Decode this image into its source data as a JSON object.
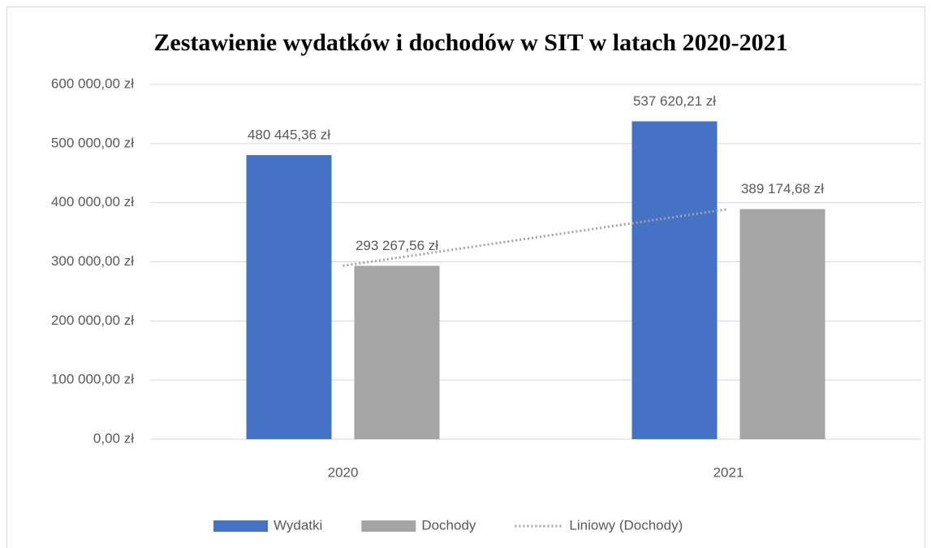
{
  "chart_data": {
    "type": "bar",
    "title": "Zestawienie wydatków i dochodów w SIT w latach 2020-2021",
    "categories": [
      "2020",
      "2021"
    ],
    "series": [
      {
        "name": "Wydatki",
        "color": "#4472c4",
        "values": [
          480445.36,
          537620.21
        ],
        "value_labels": [
          "480 445,36 zł",
          "537 620,21 zł"
        ]
      },
      {
        "name": "Dochody",
        "color": "#a5a5a5",
        "values": [
          293267.56,
          389174.68
        ],
        "value_labels": [
          "293 267,56 zł",
          "389 174,68 zł"
        ]
      }
    ],
    "trendline": {
      "name": "Liniowy (Dochody)",
      "series": 1,
      "color": "#a5a5a5"
    },
    "ylim": [
      0,
      600000
    ],
    "yticks": [
      {
        "value": 0,
        "label": "0,00 zł"
      },
      {
        "value": 100000,
        "label": "100 000,00 zł"
      },
      {
        "value": 200000,
        "label": "200 000,00 zł"
      },
      {
        "value": 300000,
        "label": "300 000,00 zł"
      },
      {
        "value": 400000,
        "label": "400 000,00 zł"
      },
      {
        "value": 500000,
        "label": "500 000,00 zł"
      },
      {
        "value": 600000,
        "label": "600 000,00 zł"
      }
    ],
    "grid": true
  }
}
